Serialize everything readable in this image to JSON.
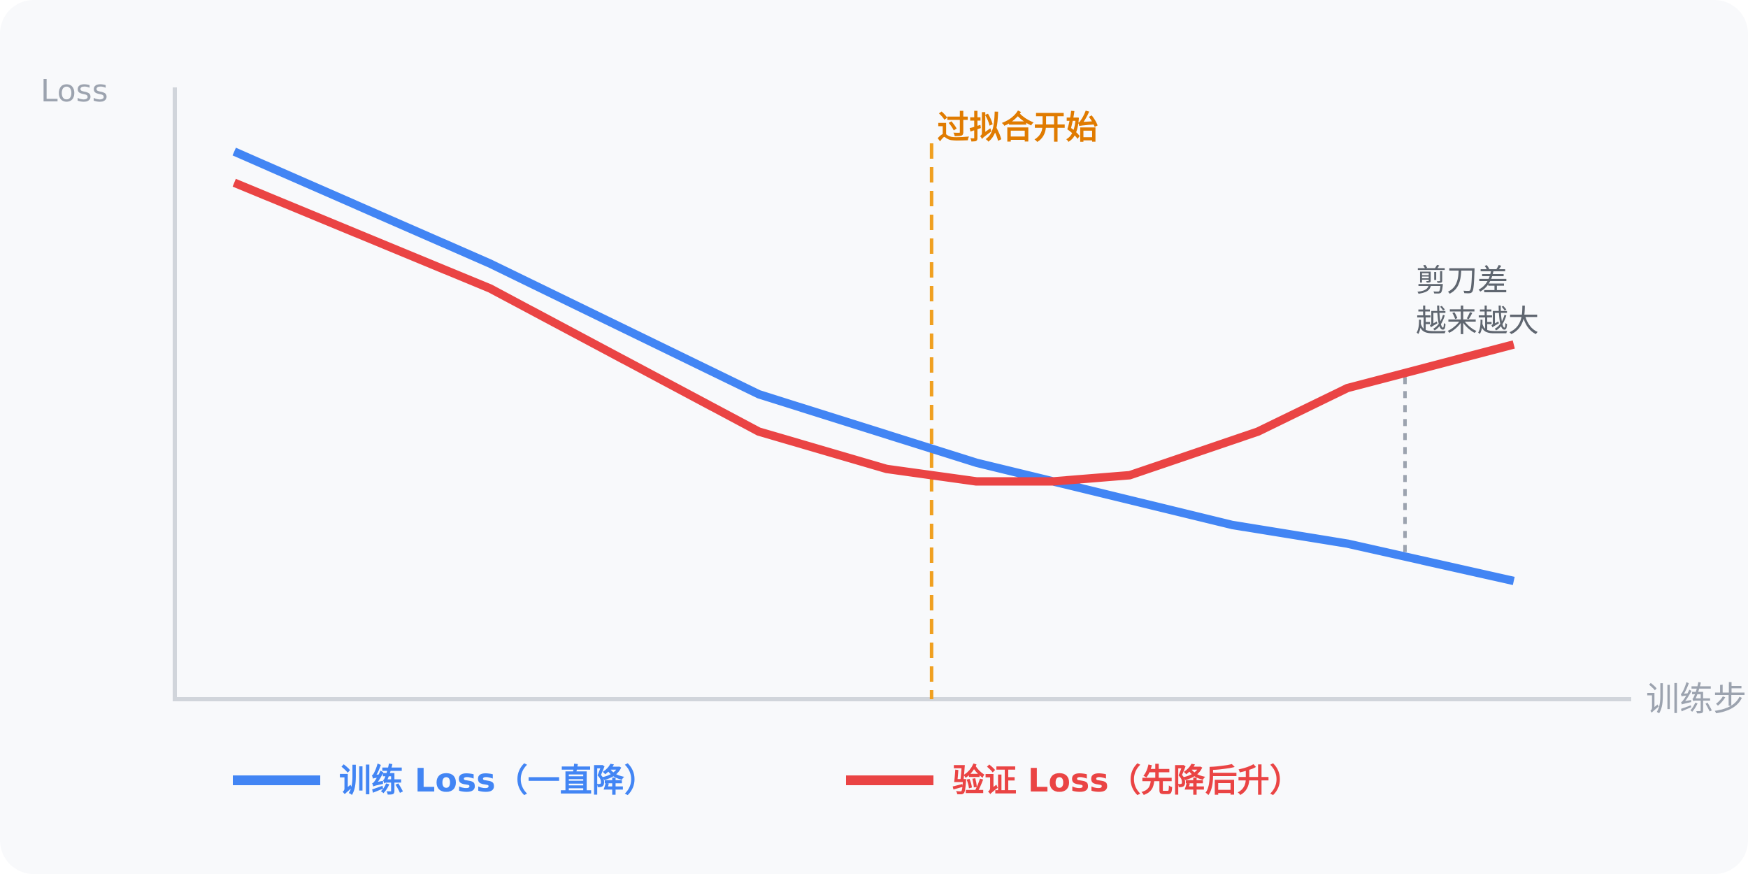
{
  "chart_data": {
    "type": "line",
    "ylabel": "Loss",
    "xlabel": "训练步",
    "xlim": [
      0,
      100
    ],
    "ylim": [
      0,
      100
    ],
    "series": [
      {
        "name": "训练 Loss（一直降）",
        "color": "#4285f4",
        "x": [
          0,
          20,
          41,
          58,
          64,
          70,
          78,
          87,
          100
        ],
        "y": [
          88,
          70,
          49,
          38,
          35,
          32,
          28,
          25,
          19
        ]
      },
      {
        "name": "验证 Loss（先降后升）",
        "color": "#ea4444",
        "x": [
          0,
          20,
          41,
          51,
          58,
          64,
          70,
          80,
          87,
          100
        ],
        "y": [
          83,
          66,
          43,
          37,
          35,
          35,
          36,
          43,
          50,
          57
        ]
      }
    ],
    "annotations": [
      {
        "type": "vline",
        "x": 54.5,
        "label": "过拟合开始",
        "color": "#f0a020",
        "label_color": "#e07b00",
        "style": "dashed"
      },
      {
        "type": "gap",
        "x": 91.5,
        "label_lines": [
          "剪刀差",
          "越来越大"
        ],
        "color": "#9ca3af",
        "label_color": "#5f6670",
        "style": "dotted"
      }
    ],
    "legend_position": "bottom",
    "grid": false
  }
}
